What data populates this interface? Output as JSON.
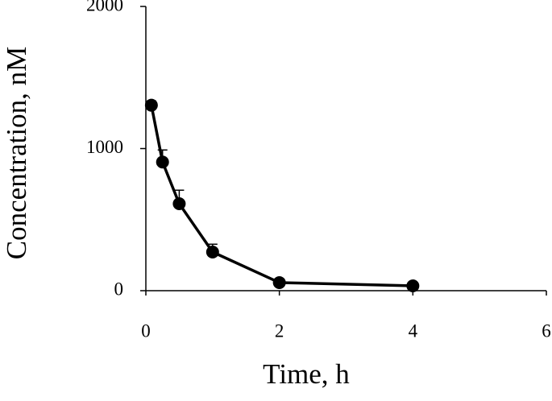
{
  "chart_data": {
    "type": "line",
    "x_label": "Time, h",
    "y_label": "Concentration, nM",
    "x": [
      0.083,
      0.25,
      0.5,
      1,
      2,
      4
    ],
    "series": [
      {
        "color": "#000000",
        "values": [
          1305,
          905,
          612,
          272,
          57,
          34
        ],
        "errors": [
          30,
          85,
          95,
          55,
          10,
          10
        ]
      }
    ],
    "xlim": [
      0,
      6
    ],
    "xticks": [
      0,
      2,
      4,
      6
    ],
    "ylim": [
      0,
      2000
    ],
    "yticks": [
      0,
      1000,
      2000
    ]
  }
}
